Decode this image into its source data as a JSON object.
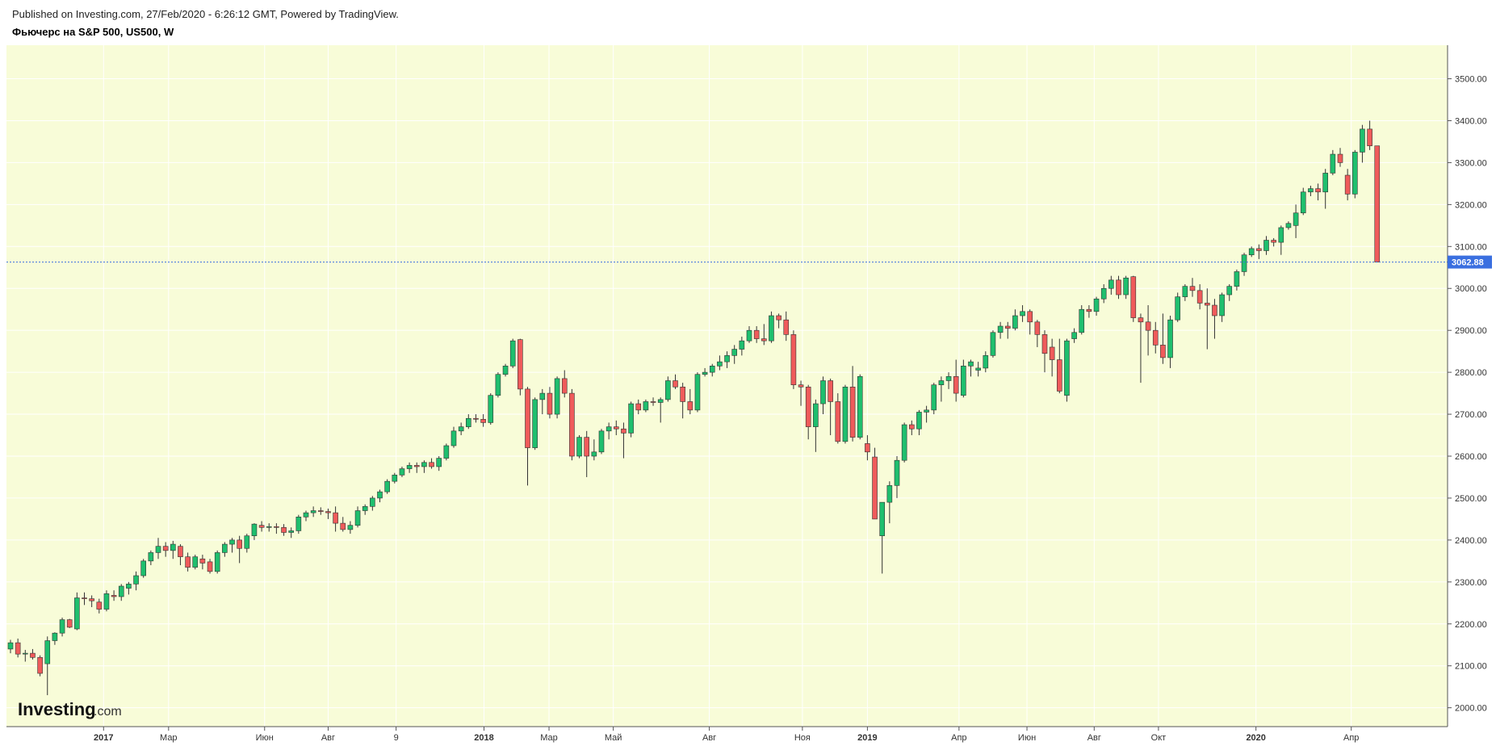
{
  "header": {
    "published": "Published on Investing.com, 27/Feb/2020 - 6:26:12 GMT, Powered by TradingView.",
    "title": "Фьючерс на S&P 500, US500, W"
  },
  "logo": {
    "main": "Investing",
    "suffix": ".com"
  },
  "colors": {
    "plot_bg": "#f8fcd8",
    "grid": "#ffffff",
    "up": "#1fbf6e",
    "down": "#ef5b5b",
    "wick": "#333333",
    "last_price": "#3a6fe0"
  },
  "chart_data": {
    "type": "candlestick",
    "title": "Фьючерс на S&P 500, US500, W",
    "interval": "W",
    "ylim": [
      1955,
      3580
    ],
    "y_ticks": [
      "2000.00",
      "2100.00",
      "2200.00",
      "2300.00",
      "2400.00",
      "2500.00",
      "2600.00",
      "2700.00",
      "2800.00",
      "2900.00",
      "3000.00",
      "3100.00",
      "3200.00",
      "3300.00",
      "3400.00",
      "3500.00"
    ],
    "y_tick_values": [
      2000,
      2100,
      2200,
      2300,
      2400,
      2500,
      2600,
      2700,
      2800,
      2900,
      3000,
      3100,
      3200,
      3300,
      3400,
      3500
    ],
    "x_ticks": [
      {
        "label": "2017",
        "index": 12.6,
        "bold": true
      },
      {
        "label": "Мар",
        "index": 21.4,
        "bold": false
      },
      {
        "label": "Июн",
        "index": 34.4,
        "bold": false
      },
      {
        "label": "Авг",
        "index": 43.0,
        "bold": false
      },
      {
        "label": "9",
        "index": 52.2,
        "bold": false
      },
      {
        "label": "2018",
        "index": 64.1,
        "bold": true
      },
      {
        "label": "Мар",
        "index": 72.9,
        "bold": false
      },
      {
        "label": "Май",
        "index": 81.6,
        "bold": false
      },
      {
        "label": "Авг",
        "index": 94.6,
        "bold": false
      },
      {
        "label": "Ноя",
        "index": 107.2,
        "bold": false
      },
      {
        "label": "2019",
        "index": 116.0,
        "bold": true
      },
      {
        "label": "Апр",
        "index": 128.4,
        "bold": false
      },
      {
        "label": "Июн",
        "index": 137.6,
        "bold": false
      },
      {
        "label": "Авг",
        "index": 146.7,
        "bold": false
      },
      {
        "label": "Окт",
        "index": 155.4,
        "bold": false
      },
      {
        "label": "2020",
        "index": 168.6,
        "bold": true
      },
      {
        "label": "Апр",
        "index": 181.5,
        "bold": false
      }
    ],
    "last_price": 3062.88,
    "last_price_label": "3062.88",
    "candles_ohlc": [
      [
        2140,
        2162,
        2130,
        2155
      ],
      [
        2155,
        2165,
        2120,
        2128
      ],
      [
        2128,
        2138,
        2110,
        2130
      ],
      [
        2130,
        2140,
        2115,
        2120
      ],
      [
        2120,
        2125,
        2075,
        2082
      ],
      [
        2105,
        2170,
        2030,
        2160
      ],
      [
        2160,
        2180,
        2150,
        2178
      ],
      [
        2178,
        2215,
        2170,
        2210
      ],
      [
        2210,
        2212,
        2190,
        2192
      ],
      [
        2188,
        2275,
        2185,
        2262
      ],
      [
        2262,
        2275,
        2245,
        2260
      ],
      [
        2260,
        2268,
        2240,
        2255
      ],
      [
        2252,
        2260,
        2225,
        2235
      ],
      [
        2235,
        2280,
        2230,
        2272
      ],
      [
        2268,
        2280,
        2255,
        2265
      ],
      [
        2265,
        2295,
        2255,
        2290
      ],
      [
        2285,
        2300,
        2270,
        2295
      ],
      [
        2295,
        2325,
        2280,
        2315
      ],
      [
        2315,
        2355,
        2310,
        2350
      ],
      [
        2350,
        2375,
        2340,
        2370
      ],
      [
        2370,
        2405,
        2355,
        2385
      ],
      [
        2385,
        2395,
        2360,
        2375
      ],
      [
        2375,
        2398,
        2355,
        2390
      ],
      [
        2385,
        2390,
        2340,
        2360
      ],
      [
        2360,
        2370,
        2325,
        2335
      ],
      [
        2335,
        2365,
        2330,
        2360
      ],
      [
        2355,
        2365,
        2330,
        2345
      ],
      [
        2348,
        2355,
        2320,
        2325
      ],
      [
        2325,
        2375,
        2320,
        2370
      ],
      [
        2370,
        2395,
        2360,
        2390
      ],
      [
        2390,
        2405,
        2370,
        2400
      ],
      [
        2400,
        2410,
        2345,
        2380
      ],
      [
        2380,
        2415,
        2370,
        2410
      ],
      [
        2410,
        2440,
        2400,
        2438
      ],
      [
        2435,
        2445,
        2420,
        2430
      ],
      [
        2430,
        2440,
        2420,
        2432
      ],
      [
        2432,
        2440,
        2415,
        2430
      ],
      [
        2430,
        2438,
        2410,
        2418
      ],
      [
        2418,
        2430,
        2405,
        2422
      ],
      [
        2422,
        2460,
        2415,
        2455
      ],
      [
        2455,
        2470,
        2445,
        2465
      ],
      [
        2465,
        2480,
        2455,
        2470
      ],
      [
        2470,
        2478,
        2460,
        2468
      ],
      [
        2468,
        2475,
        2450,
        2465
      ],
      [
        2465,
        2480,
        2420,
        2440
      ],
      [
        2440,
        2455,
        2420,
        2425
      ],
      [
        2425,
        2445,
        2415,
        2435
      ],
      [
        2435,
        2480,
        2430,
        2470
      ],
      [
        2470,
        2485,
        2460,
        2480
      ],
      [
        2480,
        2505,
        2470,
        2500
      ],
      [
        2500,
        2520,
        2490,
        2515
      ],
      [
        2515,
        2545,
        2510,
        2540
      ],
      [
        2540,
        2560,
        2535,
        2555
      ],
      [
        2555,
        2575,
        2550,
        2570
      ],
      [
        2570,
        2585,
        2560,
        2578
      ],
      [
        2578,
        2585,
        2560,
        2575
      ],
      [
        2575,
        2590,
        2560,
        2585
      ],
      [
        2585,
        2595,
        2570,
        2575
      ],
      [
        2575,
        2600,
        2565,
        2595
      ],
      [
        2595,
        2630,
        2590,
        2625
      ],
      [
        2625,
        2670,
        2620,
        2660
      ],
      [
        2660,
        2680,
        2650,
        2670
      ],
      [
        2670,
        2700,
        2665,
        2690
      ],
      [
        2690,
        2700,
        2680,
        2688
      ],
      [
        2688,
        2700,
        2670,
        2680
      ],
      [
        2680,
        2750,
        2675,
        2745
      ],
      [
        2745,
        2800,
        2740,
        2795
      ],
      [
        2795,
        2820,
        2790,
        2815
      ],
      [
        2815,
        2880,
        2810,
        2875
      ],
      [
        2878,
        2880,
        2745,
        2760
      ],
      [
        2760,
        2765,
        2530,
        2620
      ],
      [
        2620,
        2740,
        2615,
        2735
      ],
      [
        2735,
        2760,
        2700,
        2750
      ],
      [
        2750,
        2765,
        2690,
        2700
      ],
      [
        2700,
        2790,
        2690,
        2785
      ],
      [
        2785,
        2805,
        2740,
        2750
      ],
      [
        2750,
        2760,
        2590,
        2600
      ],
      [
        2600,
        2650,
        2595,
        2645
      ],
      [
        2645,
        2660,
        2550,
        2600
      ],
      [
        2600,
        2640,
        2590,
        2610
      ],
      [
        2610,
        2665,
        2605,
        2660
      ],
      [
        2660,
        2680,
        2640,
        2670
      ],
      [
        2670,
        2685,
        2650,
        2665
      ],
      [
        2665,
        2680,
        2595,
        2655
      ],
      [
        2655,
        2730,
        2645,
        2725
      ],
      [
        2725,
        2735,
        2700,
        2710
      ],
      [
        2710,
        2735,
        2705,
        2730
      ],
      [
        2730,
        2740,
        2720,
        2728
      ],
      [
        2728,
        2740,
        2680,
        2735
      ],
      [
        2735,
        2790,
        2730,
        2780
      ],
      [
        2780,
        2795,
        2760,
        2765
      ],
      [
        2765,
        2775,
        2690,
        2730
      ],
      [
        2730,
        2760,
        2700,
        2710
      ],
      [
        2710,
        2800,
        2705,
        2795
      ],
      [
        2795,
        2810,
        2790,
        2800
      ],
      [
        2800,
        2820,
        2790,
        2815
      ],
      [
        2815,
        2840,
        2805,
        2825
      ],
      [
        2825,
        2850,
        2810,
        2840
      ],
      [
        2840,
        2865,
        2820,
        2855
      ],
      [
        2855,
        2885,
        2840,
        2875
      ],
      [
        2875,
        2910,
        2870,
        2900
      ],
      [
        2900,
        2910,
        2870,
        2880
      ],
      [
        2880,
        2915,
        2865,
        2875
      ],
      [
        2875,
        2945,
        2870,
        2935
      ],
      [
        2935,
        2940,
        2905,
        2925
      ],
      [
        2925,
        2945,
        2875,
        2890
      ],
      [
        2890,
        2900,
        2760,
        2770
      ],
      [
        2770,
        2780,
        2720,
        2765
      ],
      [
        2765,
        2770,
        2640,
        2670
      ],
      [
        2670,
        2735,
        2610,
        2725
      ],
      [
        2725,
        2790,
        2700,
        2780
      ],
      [
        2780,
        2785,
        2650,
        2730
      ],
      [
        2730,
        2750,
        2630,
        2635
      ],
      [
        2635,
        2770,
        2630,
        2765
      ],
      [
        2765,
        2815,
        2635,
        2645
      ],
      [
        2645,
        2795,
        2640,
        2790
      ],
      [
        2630,
        2650,
        2590,
        2610
      ],
      [
        2598,
        2620,
        2450,
        2450
      ],
      [
        2410,
        2490,
        2320,
        2490
      ],
      [
        2490,
        2540,
        2440,
        2530
      ],
      [
        2530,
        2600,
        2500,
        2590
      ],
      [
        2590,
        2680,
        2585,
        2675
      ],
      [
        2675,
        2685,
        2650,
        2665
      ],
      [
        2665,
        2710,
        2650,
        2705
      ],
      [
        2705,
        2720,
        2680,
        2710
      ],
      [
        2710,
        2775,
        2700,
        2770
      ],
      [
        2770,
        2790,
        2730,
        2780
      ],
      [
        2780,
        2800,
        2760,
        2790
      ],
      [
        2790,
        2830,
        2730,
        2750
      ],
      [
        2745,
        2830,
        2740,
        2815
      ],
      [
        2815,
        2830,
        2790,
        2825
      ],
      [
        2805,
        2825,
        2790,
        2810
      ],
      [
        2810,
        2850,
        2800,
        2840
      ],
      [
        2840,
        2900,
        2835,
        2895
      ],
      [
        2895,
        2920,
        2880,
        2910
      ],
      [
        2910,
        2920,
        2880,
        2905
      ],
      [
        2905,
        2950,
        2900,
        2935
      ],
      [
        2935,
        2960,
        2920,
        2945
      ],
      [
        2945,
        2950,
        2890,
        2920
      ],
      [
        2920,
        2925,
        2860,
        2890
      ],
      [
        2890,
        2900,
        2800,
        2845
      ],
      [
        2860,
        2880,
        2790,
        2830
      ],
      [
        2830,
        2880,
        2750,
        2755
      ],
      [
        2745,
        2880,
        2730,
        2875
      ],
      [
        2880,
        2905,
        2870,
        2895
      ],
      [
        2895,
        2960,
        2890,
        2950
      ],
      [
        2950,
        2960,
        2930,
        2945
      ],
      [
        2945,
        2980,
        2935,
        2975
      ],
      [
        2975,
        3010,
        2965,
        3000
      ],
      [
        3000,
        3030,
        2985,
        3020
      ],
      [
        3020,
        3030,
        2975,
        2985
      ],
      [
        2985,
        3030,
        2975,
        3025
      ],
      [
        3028,
        3030,
        2920,
        2930
      ],
      [
        2930,
        2940,
        2775,
        2920
      ],
      [
        2920,
        2960,
        2840,
        2900
      ],
      [
        2900,
        2920,
        2845,
        2865
      ],
      [
        2865,
        2940,
        2820,
        2835
      ],
      [
        2835,
        2935,
        2810,
        2925
      ],
      [
        2925,
        2990,
        2920,
        2980
      ],
      [
        2980,
        3010,
        2970,
        3005
      ],
      [
        3005,
        3025,
        2980,
        2995
      ],
      [
        2995,
        3010,
        2950,
        2965
      ],
      [
        2965,
        3000,
        2855,
        2960
      ],
      [
        2960,
        2975,
        2880,
        2935
      ],
      [
        2935,
        2990,
        2920,
        2985
      ],
      [
        2985,
        3010,
        2970,
        3005
      ],
      [
        3005,
        3045,
        2995,
        3040
      ],
      [
        3040,
        3085,
        3030,
        3080
      ],
      [
        3080,
        3100,
        3075,
        3095
      ],
      [
        3095,
        3105,
        3070,
        3090
      ],
      [
        3090,
        3125,
        3080,
        3115
      ],
      [
        3115,
        3120,
        3100,
        3110
      ],
      [
        3110,
        3150,
        3080,
        3145
      ],
      [
        3145,
        3160,
        3140,
        3155
      ],
      [
        3150,
        3200,
        3120,
        3180
      ],
      [
        3180,
        3240,
        3175,
        3230
      ],
      [
        3230,
        3245,
        3220,
        3238
      ],
      [
        3238,
        3250,
        3210,
        3230
      ],
      [
        3230,
        3285,
        3190,
        3275
      ],
      [
        3275,
        3330,
        3270,
        3320
      ],
      [
        3320,
        3335,
        3290,
        3300
      ],
      [
        3270,
        3285,
        3210,
        3225
      ],
      [
        3225,
        3330,
        3215,
        3325
      ],
      [
        3325,
        3390,
        3300,
        3380
      ],
      [
        3380,
        3400,
        3330,
        3340
      ],
      [
        3340,
        3340,
        3062.88,
        3062.88
      ]
    ]
  }
}
